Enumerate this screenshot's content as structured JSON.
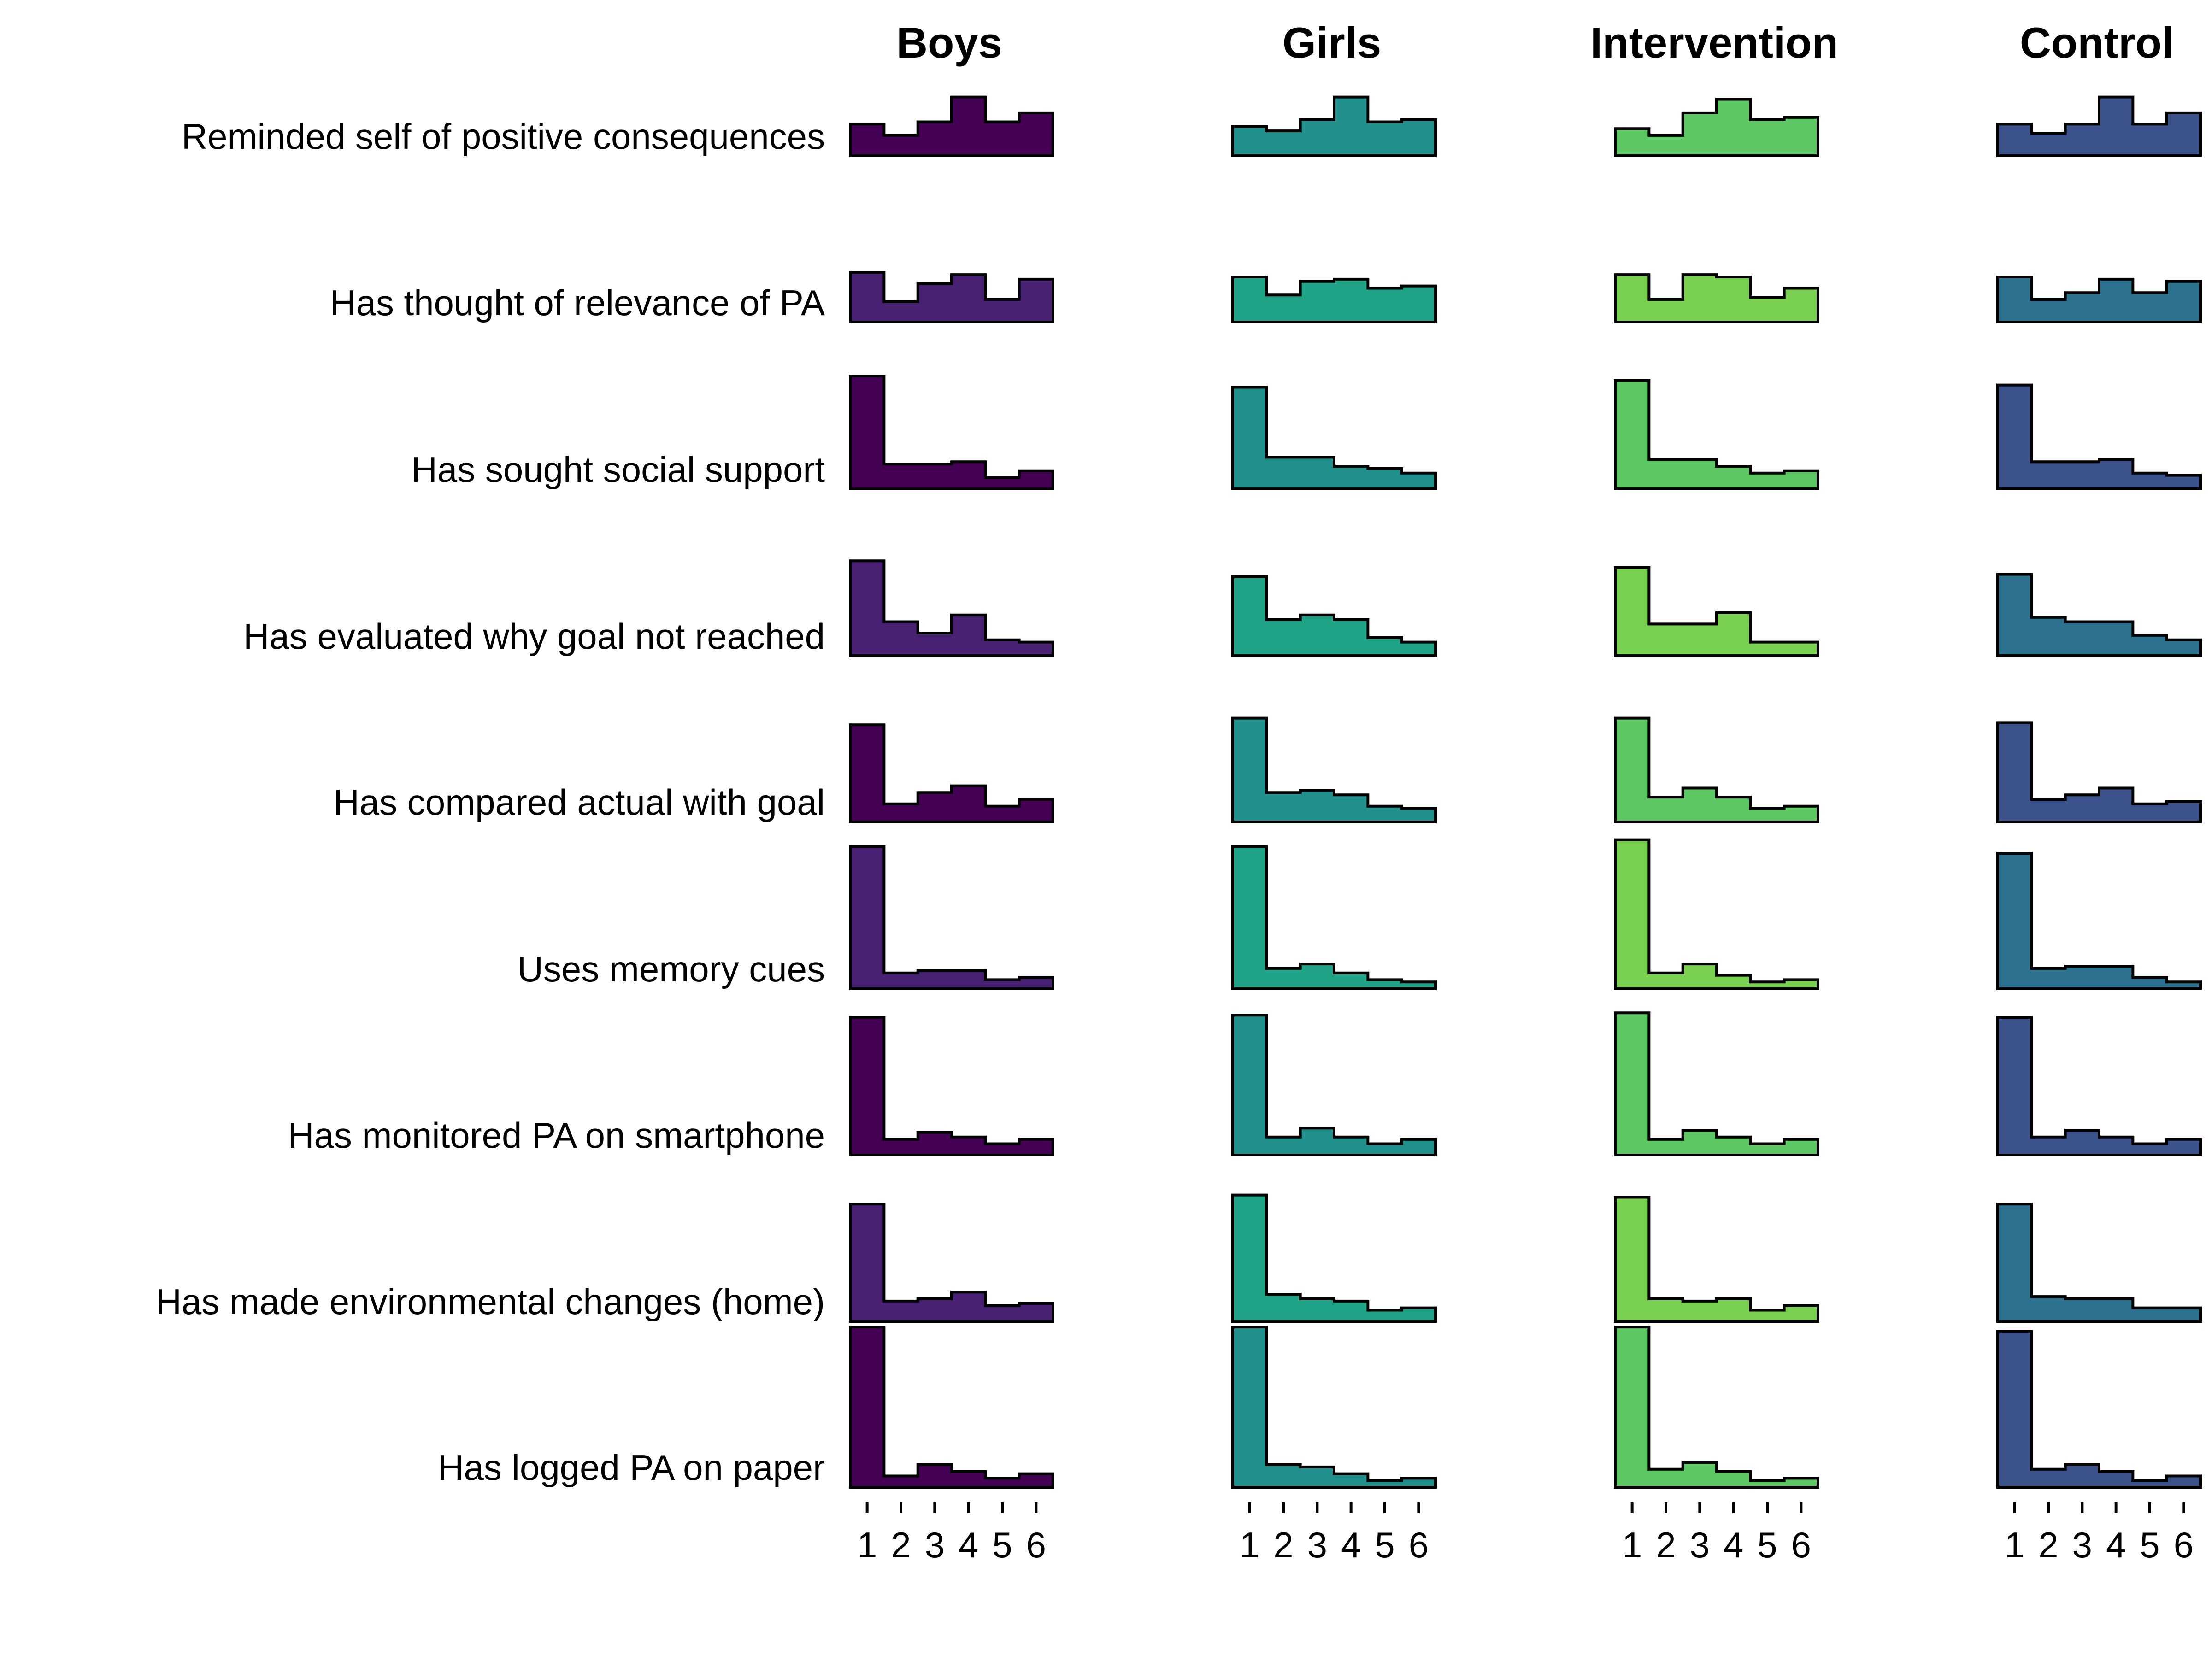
{
  "chart_data": {
    "type": "ridgeline-histogram",
    "bins": [
      "1",
      "2",
      "3",
      "4",
      "5",
      "6"
    ],
    "groups": [
      {
        "name": "Boys",
        "color": "#440154"
      },
      {
        "name": "Girls",
        "color": "#21908C"
      },
      {
        "name": "Intervention",
        "color": "#5DC863"
      },
      {
        "name": "Control",
        "color": "#3B528B"
      }
    ],
    "rows": [
      {
        "label": "Reminded self of positive consequences",
        "colors": [
          "#440154",
          "#21908C",
          "#5DC863",
          "#3B528B"
        ],
        "values": [
          [
            0.14,
            0.09,
            0.15,
            0.26,
            0.15,
            0.19
          ],
          [
            0.13,
            0.11,
            0.16,
            0.26,
            0.15,
            0.16
          ],
          [
            0.12,
            0.09,
            0.19,
            0.25,
            0.16,
            0.17
          ],
          [
            0.14,
            0.1,
            0.14,
            0.26,
            0.14,
            0.19
          ]
        ]
      },
      {
        "label": "Has thought of relevance of PA",
        "colors": [
          "#482173",
          "#20A386",
          "#7AD151",
          "#2C728E"
        ],
        "values": [
          [
            0.22,
            0.09,
            0.17,
            0.21,
            0.1,
            0.19
          ],
          [
            0.2,
            0.12,
            0.18,
            0.19,
            0.15,
            0.16
          ],
          [
            0.21,
            0.1,
            0.21,
            0.2,
            0.11,
            0.15
          ],
          [
            0.2,
            0.1,
            0.13,
            0.19,
            0.13,
            0.18
          ]
        ]
      },
      {
        "label": "Has sought social support",
        "colors": [
          "#440154",
          "#21908C",
          "#5DC863",
          "#3B528B"
        ],
        "values": [
          [
            0.5,
            0.11,
            0.11,
            0.12,
            0.05,
            0.08
          ],
          [
            0.45,
            0.14,
            0.14,
            0.1,
            0.09,
            0.07
          ],
          [
            0.48,
            0.13,
            0.13,
            0.1,
            0.07,
            0.08
          ],
          [
            0.46,
            0.12,
            0.12,
            0.13,
            0.07,
            0.06
          ]
        ]
      },
      {
        "label": "Has evaluated why goal not reached",
        "colors": [
          "#482173",
          "#20A386",
          "#7AD151",
          "#2C728E"
        ],
        "values": [
          [
            0.42,
            0.15,
            0.1,
            0.18,
            0.07,
            0.06
          ],
          [
            0.35,
            0.16,
            0.18,
            0.16,
            0.08,
            0.06
          ],
          [
            0.39,
            0.14,
            0.14,
            0.19,
            0.06,
            0.06
          ],
          [
            0.36,
            0.17,
            0.15,
            0.15,
            0.09,
            0.07
          ]
        ]
      },
      {
        "label": "Has compared actual with goal",
        "colors": [
          "#440154",
          "#21908C",
          "#5DC863",
          "#3B528B"
        ],
        "values": [
          [
            0.43,
            0.08,
            0.13,
            0.16,
            0.07,
            0.1
          ],
          [
            0.46,
            0.13,
            0.14,
            0.12,
            0.07,
            0.06
          ],
          [
            0.46,
            0.11,
            0.15,
            0.11,
            0.06,
            0.07
          ],
          [
            0.44,
            0.1,
            0.12,
            0.15,
            0.08,
            0.09
          ]
        ]
      },
      {
        "label": "Uses memory cues",
        "colors": [
          "#482173",
          "#20A386",
          "#7AD151",
          "#2C728E"
        ],
        "values": [
          [
            0.63,
            0.07,
            0.08,
            0.08,
            0.04,
            0.05
          ],
          [
            0.63,
            0.09,
            0.11,
            0.07,
            0.04,
            0.03
          ],
          [
            0.66,
            0.07,
            0.11,
            0.06,
            0.03,
            0.04
          ],
          [
            0.6,
            0.09,
            0.1,
            0.1,
            0.05,
            0.03
          ]
        ]
      },
      {
        "label": "Has monitored PA on smartphone",
        "colors": [
          "#440154",
          "#21908C",
          "#5DC863",
          "#3B528B"
        ],
        "values": [
          [
            0.61,
            0.07,
            0.1,
            0.08,
            0.05,
            0.07
          ],
          [
            0.62,
            0.08,
            0.12,
            0.08,
            0.05,
            0.07
          ],
          [
            0.63,
            0.07,
            0.11,
            0.08,
            0.05,
            0.07
          ],
          [
            0.61,
            0.08,
            0.11,
            0.08,
            0.05,
            0.07
          ]
        ]
      },
      {
        "label": "Has made environmental changes (home)",
        "colors": [
          "#482173",
          "#20A386",
          "#7AD151",
          "#2C728E"
        ],
        "values": [
          [
            0.52,
            0.09,
            0.1,
            0.13,
            0.07,
            0.08
          ],
          [
            0.56,
            0.12,
            0.1,
            0.09,
            0.05,
            0.06
          ],
          [
            0.55,
            0.1,
            0.09,
            0.1,
            0.05,
            0.07
          ],
          [
            0.52,
            0.11,
            0.1,
            0.1,
            0.06,
            0.06
          ]
        ]
      },
      {
        "label": "Has logged PA on paper",
        "colors": [
          "#440154",
          "#21908C",
          "#5DC863",
          "#3B528B"
        ],
        "values": [
          [
            0.71,
            0.05,
            0.1,
            0.07,
            0.04,
            0.06
          ],
          [
            0.71,
            0.1,
            0.09,
            0.06,
            0.03,
            0.04
          ],
          [
            0.71,
            0.08,
            0.11,
            0.07,
            0.03,
            0.04
          ],
          [
            0.69,
            0.08,
            0.1,
            0.07,
            0.03,
            0.05
          ]
        ]
      }
    ],
    "grid": false,
    "legend": "none"
  }
}
